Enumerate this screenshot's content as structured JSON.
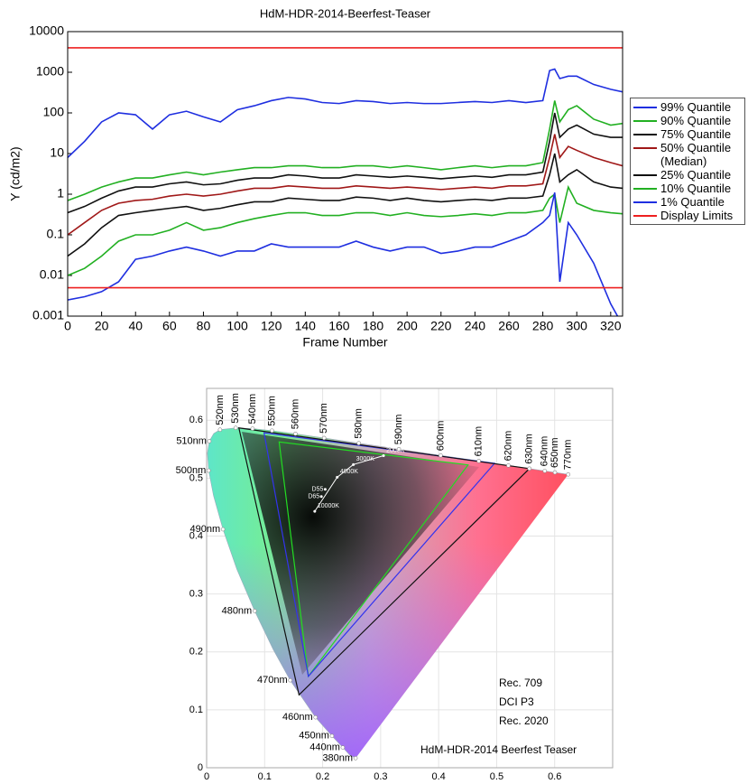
{
  "chart_data": [
    {
      "type": "line",
      "title": "HdM-HDR-2014-Beerfest-Teaser",
      "x_label": "Frame Number",
      "y_label": "Y (cd/m2)",
      "log_y": true,
      "xlim": [
        0,
        327
      ],
      "ylim": [
        0.001,
        10000
      ],
      "xticks": [
        0,
        20,
        40,
        60,
        80,
        100,
        120,
        140,
        160,
        180,
        200,
        220,
        240,
        260,
        280,
        300,
        320
      ],
      "yticks": [
        0.001,
        0.01,
        0.1,
        1,
        10,
        100,
        1000,
        10000
      ],
      "x": [
        0,
        10,
        20,
        30,
        40,
        50,
        60,
        70,
        80,
        90,
        100,
        110,
        120,
        130,
        140,
        150,
        160,
        170,
        180,
        190,
        200,
        210,
        220,
        230,
        240,
        250,
        260,
        270,
        280,
        284,
        287,
        290,
        295,
        300,
        310,
        320,
        327
      ],
      "series": [
        {
          "name": "99% Quantile",
          "color": "#1f2fe0",
          "values": [
            8,
            20,
            60,
            100,
            90,
            40,
            90,
            110,
            80,
            60,
            120,
            150,
            200,
            240,
            220,
            180,
            170,
            200,
            190,
            170,
            180,
            170,
            170,
            180,
            190,
            180,
            200,
            180,
            200,
            1100,
            1200,
            700,
            800,
            800,
            500,
            380,
            330
          ]
        },
        {
          "name": "90% Quantile",
          "color": "#22b022",
          "values": [
            0.7,
            1.0,
            1.5,
            2.0,
            2.5,
            2.5,
            3,
            3.5,
            3,
            3.5,
            4,
            4.5,
            4.5,
            5,
            5,
            4.5,
            4.5,
            5,
            5,
            4.5,
            5,
            4.5,
            4,
            4.5,
            5,
            4.5,
            5,
            5,
            6,
            40,
            200,
            60,
            120,
            150,
            70,
            50,
            55
          ]
        },
        {
          "name": "75% Quantile",
          "color": "#111111",
          "values": [
            0.35,
            0.5,
            0.8,
            1.2,
            1.5,
            1.5,
            1.8,
            2,
            1.7,
            1.8,
            2.2,
            2.5,
            2.5,
            3,
            2.8,
            2.5,
            2.5,
            3,
            2.8,
            2.6,
            2.8,
            2.6,
            2.4,
            2.6,
            2.8,
            2.6,
            3,
            3,
            3.5,
            20,
            100,
            25,
            40,
            50,
            30,
            25,
            25
          ]
        },
        {
          "name": "50% Quantile (Median)",
          "color": "#a01818",
          "values": [
            0.1,
            0.2,
            0.4,
            0.6,
            0.7,
            0.75,
            0.9,
            1,
            0.9,
            1,
            1.2,
            1.4,
            1.4,
            1.6,
            1.5,
            1.4,
            1.4,
            1.6,
            1.5,
            1.4,
            1.5,
            1.4,
            1.3,
            1.4,
            1.5,
            1.4,
            1.6,
            1.6,
            1.8,
            8,
            30,
            8,
            15,
            12,
            8,
            6,
            5
          ]
        },
        {
          "name": "25% Quantile",
          "color": "#111111",
          "values": [
            0.03,
            0.06,
            0.15,
            0.3,
            0.35,
            0.4,
            0.45,
            0.5,
            0.4,
            0.45,
            0.55,
            0.65,
            0.65,
            0.8,
            0.75,
            0.7,
            0.7,
            0.85,
            0.8,
            0.7,
            0.8,
            0.7,
            0.65,
            0.7,
            0.75,
            0.7,
            0.8,
            0.8,
            0.9,
            3,
            10,
            2,
            3,
            4,
            2,
            1.5,
            1.4
          ]
        },
        {
          "name": "10% Quantile",
          "color": "#22b022",
          "values": [
            0.01,
            0.015,
            0.03,
            0.07,
            0.1,
            0.1,
            0.13,
            0.2,
            0.13,
            0.15,
            0.2,
            0.25,
            0.3,
            0.35,
            0.35,
            0.3,
            0.3,
            0.35,
            0.35,
            0.3,
            0.35,
            0.3,
            0.28,
            0.3,
            0.33,
            0.3,
            0.35,
            0.35,
            0.4,
            0.8,
            1,
            0.2,
            1.5,
            0.6,
            0.4,
            0.35,
            0.33
          ]
        },
        {
          "name": "1% Quantile",
          "color": "#1f2fe0",
          "values": [
            0.0025,
            0.003,
            0.004,
            0.007,
            0.025,
            0.03,
            0.04,
            0.05,
            0.04,
            0.03,
            0.04,
            0.04,
            0.06,
            0.05,
            0.05,
            0.05,
            0.05,
            0.07,
            0.05,
            0.04,
            0.05,
            0.05,
            0.035,
            0.04,
            0.05,
            0.05,
            0.07,
            0.1,
            0.2,
            0.3,
            1.1,
            0.007,
            0.2,
            0.1,
            0.02,
            0.002,
            0.0006
          ]
        }
      ],
      "reference_lines": {
        "name": "Display Limits",
        "color": "#ee2020",
        "values": [
          4000,
          0.005
        ]
      }
    },
    {
      "type": "chromaticity",
      "xlim": [
        0,
        0.7
      ],
      "ylim": [
        0,
        0.655
      ],
      "xticks": [
        0,
        0.1,
        0.2,
        0.3,
        0.4,
        0.5,
        0.6
      ],
      "yticks": [
        0,
        0.1,
        0.2,
        0.3,
        0.4,
        0.5,
        0.6
      ],
      "grid": true,
      "locus": {
        "labels": [
          "380nm",
          null,
          "440nm",
          "450nm",
          "460nm",
          "470nm",
          null,
          "480nm",
          null,
          "490nm",
          null,
          "500nm",
          null,
          "510nm",
          null,
          "520nm",
          "530nm",
          "540nm",
          "550nm",
          "560nm",
          "570nm",
          "580nm",
          "590nm",
          "600nm",
          "610nm",
          "620nm",
          "630nm",
          "640nm",
          "650nm",
          "770nm"
        ],
        "x": [
          0.2568,
          0.2461,
          0.2347,
          0.2161,
          0.1877,
          0.1441,
          0.1147,
          0.0828,
          0.0521,
          0.0282,
          0.0119,
          0.0035,
          0.0014,
          0.0046,
          0.0123,
          0.0231,
          0.0501,
          0.0792,
          0.1127,
          0.1531,
          0.2026,
          0.2623,
          0.3315,
          0.4035,
          0.4692,
          0.5203,
          0.5565,
          0.583,
          0.6005,
          0.6234
        ],
        "y": [
          0.0166,
          0.0226,
          0.035,
          0.0549,
          0.0871,
          0.151,
          0.2044,
          0.2708,
          0.3427,
          0.4117,
          0.4698,
          0.5131,
          0.5432,
          0.5638,
          0.577,
          0.5837,
          0.5868,
          0.5856,
          0.5821,
          0.5766,
          0.5694,
          0.5604,
          0.5501,
          0.5393,
          0.5296,
          0.5219,
          0.5165,
          0.5125,
          0.5099,
          0.5065
        ]
      },
      "gamuts": [
        {
          "name": "Rec. 709",
          "color": "#22dd22",
          "x": [
            0.4507,
            0.125,
            0.1754
          ],
          "y": [
            0.5229,
            0.5625,
            0.1579
          ]
        },
        {
          "name": "DCI P3",
          "color": "#3333ee",
          "x": [
            0.4964,
            0.099,
            0.1754
          ],
          "y": [
            0.5256,
            0.5782,
            0.1579
          ]
        },
        {
          "name": "Rec. 2020",
          "color": "#111111",
          "x": [
            0.5566,
            0.0556,
            0.1593
          ],
          "y": [
            0.5165,
            0.5868,
            0.1258
          ]
        }
      ],
      "planckian": {
        "labels": [
          "2000K",
          "3000K",
          "4000K",
          "10000K"
        ],
        "x": [
          0.305,
          0.253,
          0.2251,
          0.1864
        ],
        "y": [
          0.5388,
          0.5235,
          0.5016,
          0.4427
        ]
      },
      "whitepoints": {
        "labels": [
          "D55",
          "D65"
        ],
        "x": [
          0.2044,
          0.1978
        ],
        "y": [
          0.4808,
          0.4683
        ]
      },
      "annotation": "HdM-HDR-2014 Beerfest Teaser"
    }
  ]
}
